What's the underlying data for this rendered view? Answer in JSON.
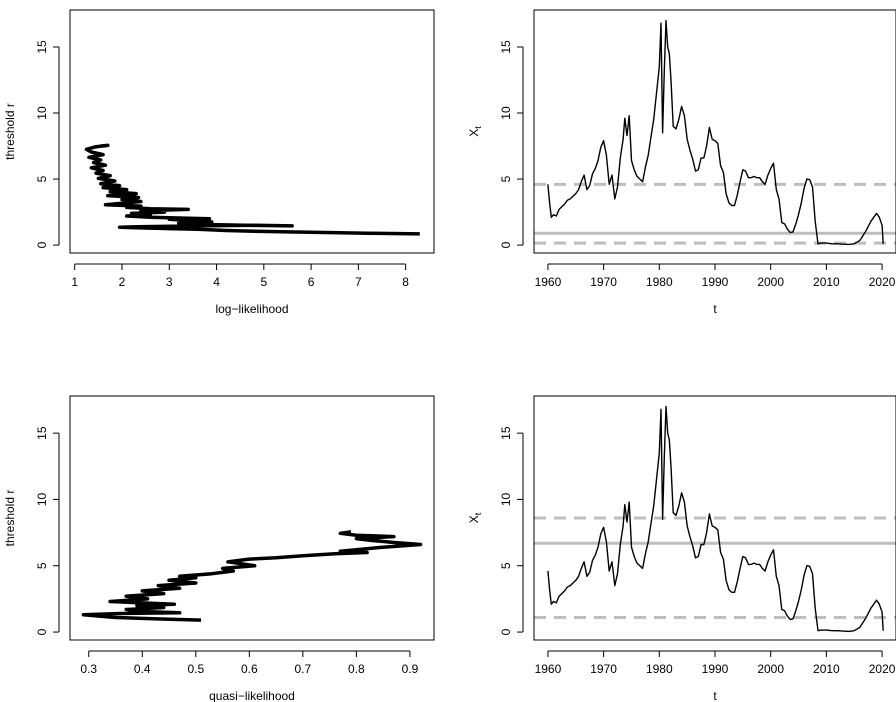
{
  "chart_data": [
    {
      "id": "top-left",
      "type": "line",
      "xlabel": "log−likelihood",
      "ylabel": "threshold r",
      "xlim": [
        0.9,
        8.6
      ],
      "ylim": [
        -0.6,
        17.8
      ],
      "xticks": [
        1,
        2,
        3,
        4,
        5,
        6,
        7,
        8
      ],
      "yticks": [
        0,
        5,
        10,
        15
      ],
      "series": [
        {
          "color": "#000000",
          "points": [
            [
              8.3,
              0.85
            ],
            [
              7.2,
              0.9
            ],
            [
              6.3,
              0.95
            ],
            [
              5.5,
              1.0
            ],
            [
              4.8,
              1.05
            ],
            [
              4.2,
              1.1
            ],
            [
              3.6,
              1.2
            ],
            [
              3.0,
              1.25
            ],
            [
              2.4,
              1.3
            ],
            [
              1.95,
              1.35
            ],
            [
              2.5,
              1.4
            ],
            [
              3.6,
              1.45
            ],
            [
              4.8,
              1.5
            ],
            [
              5.6,
              1.45
            ],
            [
              4.6,
              1.5
            ],
            [
              3.9,
              1.55
            ],
            [
              3.2,
              1.65
            ],
            [
              3.9,
              1.75
            ],
            [
              3.4,
              1.85
            ],
            [
              3.0,
              1.95
            ],
            [
              3.85,
              2.0
            ],
            [
              3.2,
              2.05
            ],
            [
              2.6,
              2.1
            ],
            [
              2.1,
              2.2
            ],
            [
              2.6,
              2.3
            ],
            [
              2.2,
              2.4
            ],
            [
              2.9,
              2.5
            ],
            [
              2.4,
              2.6
            ],
            [
              3.4,
              2.7
            ],
            [
              2.6,
              2.75
            ],
            [
              2.1,
              2.85
            ],
            [
              2.4,
              2.95
            ],
            [
              1.65,
              3.05
            ],
            [
              1.95,
              3.15
            ],
            [
              2.4,
              3.3
            ],
            [
              2.0,
              3.45
            ],
            [
              2.35,
              3.6
            ],
            [
              1.7,
              3.75
            ],
            [
              2.3,
              3.9
            ],
            [
              1.75,
              4.05
            ],
            [
              2.1,
              4.2
            ],
            [
              1.6,
              4.35
            ],
            [
              1.95,
              4.5
            ],
            [
              1.55,
              4.65
            ],
            [
              1.85,
              4.85
            ],
            [
              1.5,
              5.05
            ],
            [
              1.75,
              5.25
            ],
            [
              1.45,
              5.45
            ],
            [
              1.6,
              5.65
            ],
            [
              1.35,
              5.85
            ],
            [
              1.65,
              6.05
            ],
            [
              1.4,
              6.25
            ],
            [
              1.55,
              6.45
            ],
            [
              1.3,
              6.65
            ],
            [
              1.6,
              6.85
            ],
            [
              1.35,
              7.05
            ],
            [
              1.25,
              7.25
            ],
            [
              1.45,
              7.45
            ],
            [
              1.7,
              7.55
            ],
            [
              1.55,
              7.5
            ]
          ]
        }
      ]
    },
    {
      "id": "top-right",
      "type": "line",
      "xlabel": "t",
      "ylabel": "X",
      "ylabel_sub": "t",
      "xlim": [
        1957.5,
        2022.5
      ],
      "ylim": [
        -0.6,
        17.8
      ],
      "xticks": [
        1960,
        1970,
        1980,
        1990,
        2000,
        2010,
        2020
      ],
      "yticks": [
        0,
        5,
        10,
        15
      ],
      "hlines": [
        {
          "y": 4.6,
          "color": "#bebebe",
          "style": "dashed"
        },
        {
          "y": 0.9,
          "color": "#bebebe",
          "style": "solid"
        },
        {
          "y": 0.15,
          "color": "#bebebe",
          "style": "dashed"
        }
      ],
      "series": [
        {
          "color": "#000000",
          "points": [
            [
              1960.0,
              4.6
            ],
            [
              1960.3,
              3.2
            ],
            [
              1960.6,
              2.1
            ],
            [
              1961.0,
              2.3
            ],
            [
              1961.5,
              2.2
            ],
            [
              1962.0,
              2.7
            ],
            [
              1962.5,
              2.9
            ],
            [
              1963.0,
              3.1
            ],
            [
              1963.5,
              3.4
            ],
            [
              1964.0,
              3.5
            ],
            [
              1964.5,
              3.7
            ],
            [
              1965.0,
              3.9
            ],
            [
              1965.5,
              4.2
            ],
            [
              1966.0,
              4.8
            ],
            [
              1966.5,
              5.3
            ],
            [
              1967.0,
              4.2
            ],
            [
              1967.5,
              4.5
            ],
            [
              1968.0,
              5.4
            ],
            [
              1968.5,
              5.8
            ],
            [
              1969.0,
              6.4
            ],
            [
              1969.5,
              7.4
            ],
            [
              1970.0,
              7.9
            ],
            [
              1970.5,
              6.8
            ],
            [
              1971.0,
              4.6
            ],
            [
              1971.5,
              5.3
            ],
            [
              1972.0,
              3.5
            ],
            [
              1972.5,
              4.4
            ],
            [
              1973.0,
              6.6
            ],
            [
              1973.5,
              8.0
            ],
            [
              1973.8,
              9.6
            ],
            [
              1974.2,
              8.3
            ],
            [
              1974.6,
              9.8
            ],
            [
              1975.0,
              6.4
            ],
            [
              1975.5,
              5.7
            ],
            [
              1976.0,
              5.2
            ],
            [
              1976.5,
              5.0
            ],
            [
              1977.0,
              4.8
            ],
            [
              1977.5,
              5.9
            ],
            [
              1978.0,
              6.8
            ],
            [
              1978.5,
              8.2
            ],
            [
              1979.0,
              9.5
            ],
            [
              1979.5,
              11.5
            ],
            [
              1980.0,
              13.5
            ],
            [
              1980.3,
              16.8
            ],
            [
              1980.6,
              8.5
            ],
            [
              1980.9,
              13.2
            ],
            [
              1981.2,
              17.0
            ],
            [
              1981.5,
              15.0
            ],
            [
              1981.8,
              14.5
            ],
            [
              1982.1,
              12.5
            ],
            [
              1982.5,
              9.0
            ],
            [
              1983.0,
              8.8
            ],
            [
              1983.5,
              9.5
            ],
            [
              1984.0,
              10.5
            ],
            [
              1984.5,
              9.8
            ],
            [
              1985.0,
              8.0
            ],
            [
              1985.5,
              7.2
            ],
            [
              1986.0,
              6.5
            ],
            [
              1986.5,
              5.6
            ],
            [
              1987.0,
              5.7
            ],
            [
              1987.5,
              6.6
            ],
            [
              1988.0,
              6.6
            ],
            [
              1988.5,
              7.5
            ],
            [
              1989.0,
              8.9
            ],
            [
              1989.5,
              8.0
            ],
            [
              1990.0,
              7.9
            ],
            [
              1990.5,
              7.7
            ],
            [
              1991.0,
              6.0
            ],
            [
              1991.5,
              5.5
            ],
            [
              1992.0,
              3.9
            ],
            [
              1992.5,
              3.2
            ],
            [
              1993.0,
              3.0
            ],
            [
              1993.5,
              3.0
            ],
            [
              1994.0,
              3.8
            ],
            [
              1994.5,
              4.8
            ],
            [
              1995.0,
              5.7
            ],
            [
              1995.5,
              5.6
            ],
            [
              1996.0,
              5.1
            ],
            [
              1996.5,
              5.1
            ],
            [
              1997.0,
              5.2
            ],
            [
              1997.5,
              5.1
            ],
            [
              1998.0,
              5.1
            ],
            [
              1998.5,
              4.8
            ],
            [
              1999.0,
              4.6
            ],
            [
              1999.5,
              5.3
            ],
            [
              2000.0,
              5.8
            ],
            [
              2000.5,
              6.2
            ],
            [
              2001.0,
              4.2
            ],
            [
              2001.5,
              3.5
            ],
            [
              2002.0,
              1.7
            ],
            [
              2002.5,
              1.6
            ],
            [
              2003.0,
              1.2
            ],
            [
              2003.5,
              0.95
            ],
            [
              2004.0,
              1.0
            ],
            [
              2004.5,
              1.6
            ],
            [
              2005.0,
              2.3
            ],
            [
              2005.5,
              3.2
            ],
            [
              2006.0,
              4.3
            ],
            [
              2006.5,
              5.0
            ],
            [
              2007.0,
              4.95
            ],
            [
              2007.5,
              4.4
            ],
            [
              2008.0,
              1.8
            ],
            [
              2008.5,
              0.1
            ],
            [
              2009.0,
              0.15
            ],
            [
              2010.0,
              0.15
            ],
            [
              2011.0,
              0.1
            ],
            [
              2012.0,
              0.1
            ],
            [
              2013.0,
              0.07
            ],
            [
              2014.0,
              0.05
            ],
            [
              2015.0,
              0.1
            ],
            [
              2016.0,
              0.35
            ],
            [
              2017.0,
              1.0
            ],
            [
              2018.0,
              1.8
            ],
            [
              2019.0,
              2.4
            ],
            [
              2019.5,
              2.1
            ],
            [
              2020.0,
              1.5
            ],
            [
              2020.2,
              0.1
            ]
          ]
        }
      ]
    },
    {
      "id": "bottom-left",
      "type": "line",
      "xlabel": "quasi−likelihood",
      "ylabel": "threshold r",
      "xlim": [
        0.265,
        0.945
      ],
      "ylim": [
        -0.6,
        17.8
      ],
      "xticks": [
        0.3,
        0.4,
        0.5,
        0.6,
        0.7,
        0.8,
        0.9
      ],
      "yticks": [
        0,
        5,
        10,
        15
      ],
      "series": [
        {
          "color": "#000000",
          "points": [
            [
              0.51,
              0.9
            ],
            [
              0.42,
              1.0
            ],
            [
              0.35,
              1.1
            ],
            [
              0.29,
              1.3
            ],
            [
              0.36,
              1.4
            ],
            [
              0.47,
              1.45
            ],
            [
              0.4,
              1.55
            ],
            [
              0.37,
              1.7
            ],
            [
              0.44,
              1.85
            ],
            [
              0.39,
              2.0
            ],
            [
              0.46,
              2.1
            ],
            [
              0.34,
              2.3
            ],
            [
              0.41,
              2.5
            ],
            [
              0.37,
              2.7
            ],
            [
              0.44,
              2.9
            ],
            [
              0.4,
              3.1
            ],
            [
              0.47,
              3.3
            ],
            [
              0.43,
              3.5
            ],
            [
              0.5,
              3.7
            ],
            [
              0.45,
              3.9
            ],
            [
              0.5,
              4.1
            ],
            [
              0.47,
              4.2
            ],
            [
              0.53,
              4.4
            ],
            [
              0.57,
              4.6
            ],
            [
              0.55,
              4.8
            ],
            [
              0.61,
              5.0
            ],
            [
              0.56,
              5.3
            ],
            [
              0.6,
              5.5
            ],
            [
              0.65,
              5.6
            ],
            [
              0.7,
              5.75
            ],
            [
              0.76,
              5.9
            ],
            [
              0.82,
              6.0
            ],
            [
              0.77,
              6.1
            ],
            [
              0.81,
              6.25
            ],
            [
              0.85,
              6.4
            ],
            [
              0.92,
              6.6
            ],
            [
              0.87,
              6.75
            ],
            [
              0.83,
              6.9
            ],
            [
              0.8,
              7.05
            ],
            [
              0.87,
              7.2
            ],
            [
              0.8,
              7.3
            ],
            [
              0.77,
              7.45
            ],
            [
              0.79,
              7.55
            ]
          ]
        }
      ]
    },
    {
      "id": "bottom-right",
      "type": "line",
      "xlabel": "t",
      "ylabel": "X",
      "ylabel_sub": "t",
      "xlim": [
        1957.5,
        2022.5
      ],
      "ylim": [
        -0.6,
        17.8
      ],
      "xticks": [
        1960,
        1970,
        1980,
        1990,
        2000,
        2010,
        2020
      ],
      "yticks": [
        0,
        5,
        10,
        15
      ],
      "hlines": [
        {
          "y": 8.6,
          "color": "#bebebe",
          "style": "dashed"
        },
        {
          "y": 6.7,
          "color": "#bebebe",
          "style": "solid"
        },
        {
          "y": 1.1,
          "color": "#bebebe",
          "style": "dashed"
        }
      ],
      "series": [
        {
          "color": "#000000",
          "points_ref": "top-right"
        }
      ]
    }
  ]
}
